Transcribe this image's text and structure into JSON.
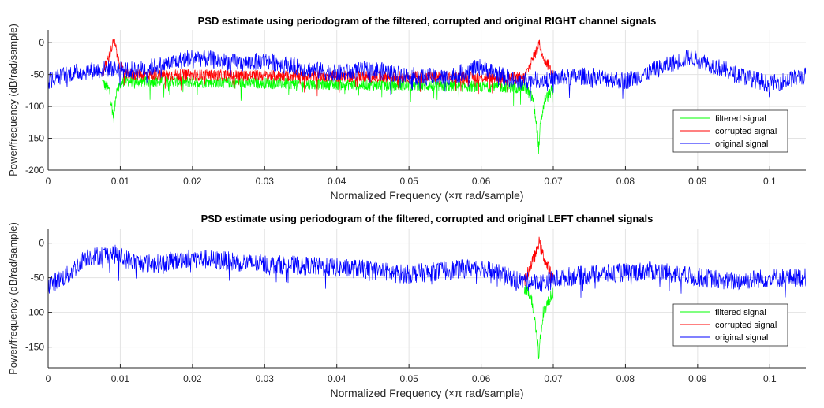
{
  "chart_data": [
    {
      "type": "line",
      "title": "PSD estimate using periodogram of the filtered, corrupted and original RIGHT channel signals",
      "xlabel": "Normalized Frequency  (×π rad/sample)",
      "ylabel": "Power/frequency (dB/rad/sample)",
      "xlim": [
        0,
        0.105
      ],
      "ylim": [
        -200,
        20
      ],
      "xticks": [
        0,
        0.01,
        0.02,
        0.03,
        0.04,
        0.05,
        0.06,
        0.07,
        0.08,
        0.09,
        0.1
      ],
      "xtick_labels": [
        "0",
        "0.01",
        "0.02",
        "0.03",
        "0.04",
        "0.05",
        "0.06",
        "0.07",
        "0.08",
        "0.09",
        "0.1"
      ],
      "yticks": [
        -200,
        -150,
        -100,
        -50,
        0
      ],
      "ytick_labels": [
        "-200",
        "-150",
        "-100",
        "-50",
        "0"
      ],
      "grid": true,
      "legend_position": "lower-right",
      "series": [
        {
          "name": "filtered signal",
          "color": "#00ff00",
          "x": [
            0.0075,
            0.0085,
            0.0089,
            0.0091,
            0.0093,
            0.0095,
            0.0105,
            0.066,
            0.0672,
            0.0678,
            0.068,
            0.0682,
            0.0688,
            0.07
          ],
          "y": [
            -62,
            -75,
            -105,
            -118,
            -95,
            -70,
            -60,
            -70,
            -88,
            -140,
            -168,
            -130,
            -90,
            -72
          ]
        },
        {
          "name": "corrupted signal",
          "color": "#ff0000",
          "x": [
            0.0075,
            0.0085,
            0.0089,
            0.0091,
            0.0093,
            0.0097,
            0.0105,
            0.066,
            0.0672,
            0.0678,
            0.068,
            0.0682,
            0.0688,
            0.07
          ],
          "y": [
            -50,
            -20,
            -5,
            1,
            -5,
            -25,
            -50,
            -55,
            -25,
            -10,
            2,
            -8,
            -25,
            -50
          ]
        },
        {
          "name": "original signal",
          "color": "#0000ff",
          "x": [
            0,
            0.003,
            0.009,
            0.012,
            0.017,
            0.02,
            0.0235,
            0.027,
            0.03,
            0.035,
            0.04,
            0.045,
            0.05,
            0.055,
            0.06,
            0.065,
            0.068,
            0.075,
            0.08,
            0.089,
            0.095,
            0.1,
            0.105
          ],
          "y": [
            -60,
            -48,
            -40,
            -44,
            -32,
            -22,
            -28,
            -33,
            -28,
            -40,
            -48,
            -42,
            -52,
            -55,
            -38,
            -62,
            -58,
            -52,
            -60,
            -22,
            -48,
            -65,
            -52
          ]
        }
      ]
    },
    {
      "type": "line",
      "title": "PSD estimate using periodogram of the filtered, corrupted and original LEFT channel signals",
      "xlabel": "Normalized Frequency  (×π rad/sample)",
      "ylabel": "Power/frequency (dB/rad/sample)",
      "xlim": [
        0,
        0.105
      ],
      "ylim": [
        -180,
        20
      ],
      "xticks": [
        0,
        0.01,
        0.02,
        0.03,
        0.04,
        0.05,
        0.06,
        0.07,
        0.08,
        0.09,
        0.1
      ],
      "xtick_labels": [
        "0",
        "0.01",
        "0.02",
        "0.03",
        "0.04",
        "0.05",
        "0.06",
        "0.07",
        "0.08",
        "0.09",
        "0.1"
      ],
      "yticks": [
        -150,
        -100,
        -50,
        0
      ],
      "ytick_labels": [
        "-150",
        "-100",
        "-50",
        "0"
      ],
      "grid": true,
      "legend_position": "lower-right",
      "series": [
        {
          "name": "filtered signal",
          "color": "#00ff00",
          "x": [
            0.066,
            0.0668,
            0.0675,
            0.0679,
            0.068,
            0.0681,
            0.0686,
            0.0693,
            0.07
          ],
          "y": [
            -68,
            -72,
            -110,
            -150,
            -170,
            -145,
            -100,
            -85,
            -70
          ]
        },
        {
          "name": "corrupted signal",
          "color": "#ff0000",
          "x": [
            0.066,
            0.067,
            0.0676,
            0.068,
            0.0684,
            0.069,
            0.07
          ],
          "y": [
            -55,
            -30,
            -15,
            2,
            -12,
            -30,
            -50
          ]
        },
        {
          "name": "original signal",
          "color": "#0000ff",
          "x": [
            0,
            0.003,
            0.005,
            0.009,
            0.012,
            0.015,
            0.0195,
            0.024,
            0.029,
            0.034,
            0.039,
            0.044,
            0.0495,
            0.055,
            0.06,
            0.0645,
            0.068,
            0.072,
            0.078,
            0.0835,
            0.089,
            0.095,
            0.1,
            0.105
          ],
          "y": [
            -60,
            -45,
            -20,
            -15,
            -28,
            -30,
            -22,
            -25,
            -30,
            -32,
            -35,
            -38,
            -45,
            -40,
            -35,
            -52,
            -58,
            -48,
            -44,
            -40,
            -48,
            -55,
            -50,
            -50
          ]
        }
      ]
    }
  ]
}
